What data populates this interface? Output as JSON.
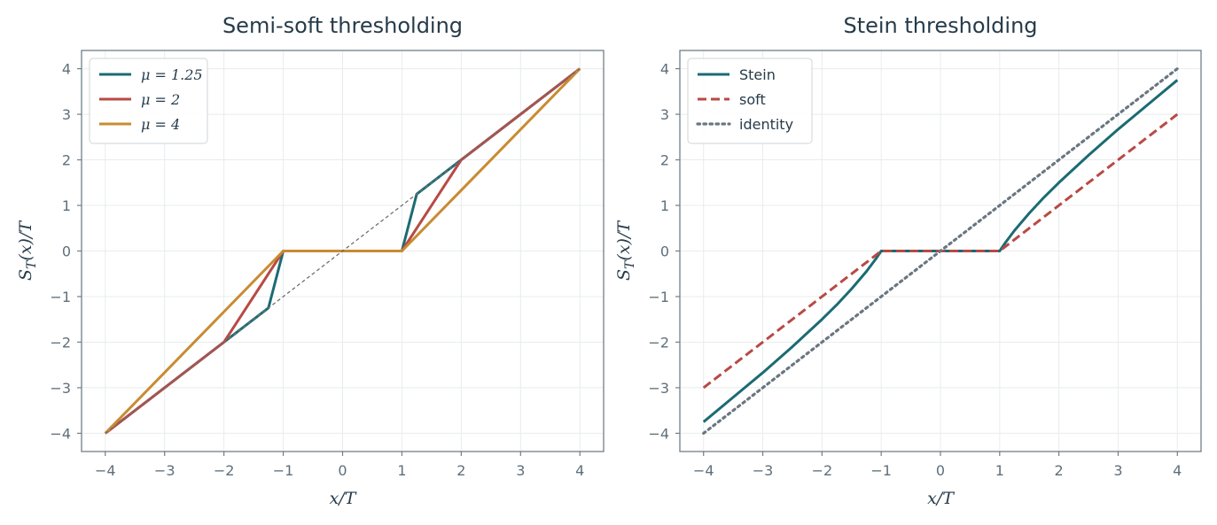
{
  "colors": {
    "teal": "#1b6b73",
    "red": "#b84a45",
    "gold": "#c98b32",
    "gray_dashed": "#707070",
    "gray_dotted": "#6a7680",
    "axis_frame": "#6f7f89",
    "grid": "#e8ecee"
  },
  "chart_data": [
    {
      "type": "line",
      "title": "Semi-soft thresholding",
      "xlabel": "x/T",
      "ylabel": "S_T(x)/T",
      "xlim": [
        -4.4,
        4.4
      ],
      "ylim": [
        -4.4,
        4.4
      ],
      "xticks": [
        -4,
        -3,
        -2,
        -1,
        0,
        1,
        2,
        3,
        4
      ],
      "yticks": [
        -4,
        -3,
        -2,
        -1,
        0,
        1,
        2,
        3,
        4
      ],
      "xtick_labels": [
        "−4",
        "−3",
        "−2",
        "−1",
        "0",
        "1",
        "2",
        "3",
        "4"
      ],
      "ytick_labels": [
        "−4",
        "−3",
        "−2",
        "−1",
        "0",
        "1",
        "2",
        "3",
        "4"
      ],
      "grid": true,
      "legend_position": "top-left",
      "series": [
        {
          "name": "μ = 1.25",
          "color": "teal",
          "dash": "solid",
          "x": [
            -4,
            -1.25,
            -1,
            1,
            1.25,
            4
          ],
          "y": [
            -4,
            -1.25,
            0,
            0,
            1.25,
            4
          ]
        },
        {
          "name": "μ = 2",
          "color": "red",
          "dash": "solid",
          "x": [
            -4,
            -2,
            -1,
            1,
            2,
            4
          ],
          "y": [
            -4,
            -2,
            0,
            0,
            2,
            4
          ]
        },
        {
          "name": "μ = 4",
          "color": "gold",
          "dash": "solid",
          "x": [
            -4,
            -1,
            1,
            4
          ],
          "y": [
            -4,
            0,
            0,
            4
          ]
        },
        {
          "color": "gray_dashed",
          "dash": "thin-dashed",
          "x": [
            -4,
            4
          ],
          "y": [
            -4,
            4
          ]
        }
      ]
    },
    {
      "type": "line",
      "title": "Stein thresholding",
      "xlabel": "x/T",
      "ylabel": "S_T(x)/T",
      "xlim": [
        -4.4,
        4.4
      ],
      "ylim": [
        -4.4,
        4.4
      ],
      "xticks": [
        -4,
        -3,
        -2,
        -1,
        0,
        1,
        2,
        3,
        4
      ],
      "yticks": [
        -4,
        -3,
        -2,
        -1,
        0,
        1,
        2,
        3,
        4
      ],
      "xtick_labels": [
        "−4",
        "−3",
        "−2",
        "−1",
        "0",
        "1",
        "2",
        "3",
        "4"
      ],
      "ytick_labels": [
        "−4",
        "−3",
        "−2",
        "−1",
        "0",
        "1",
        "2",
        "3",
        "4"
      ],
      "grid": true,
      "legend_position": "top-left",
      "series": [
        {
          "name": "Stein",
          "color": "teal",
          "dash": "solid",
          "x": [
            -4,
            -3.5,
            -3,
            -2.5,
            -2,
            -1.75,
            -1.5,
            -1.25,
            -1.1,
            -1,
            1,
            1.1,
            1.25,
            1.5,
            1.75,
            2,
            2.5,
            3,
            3.5,
            4
          ],
          "y": [
            -3.75,
            -3.21,
            -2.67,
            -2.1,
            -1.5,
            -1.18,
            -0.83,
            -0.45,
            -0.19,
            0,
            0,
            0.19,
            0.45,
            0.83,
            1.18,
            1.5,
            2.1,
            2.67,
            3.21,
            3.75
          ]
        },
        {
          "name": "soft",
          "color": "red",
          "dash": "dashed",
          "x": [
            -4,
            -1,
            1,
            4
          ],
          "y": [
            -3,
            0,
            0,
            3
          ]
        },
        {
          "name": "identity",
          "color": "gray_dotted",
          "dash": "dotted",
          "x": [
            -4,
            4
          ],
          "y": [
            -4,
            4
          ]
        }
      ]
    }
  ]
}
